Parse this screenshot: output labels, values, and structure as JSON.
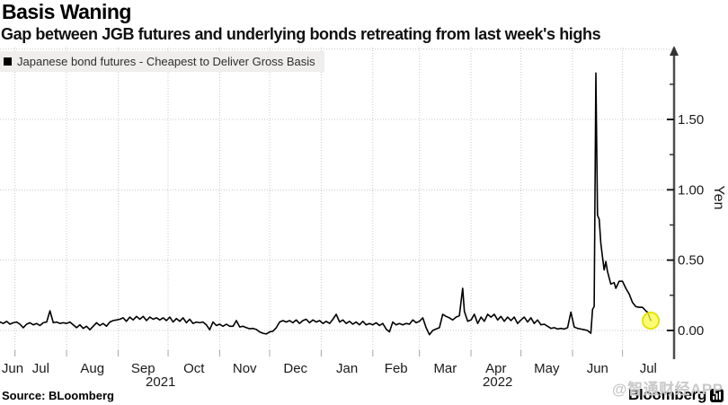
{
  "header": {
    "title": "Basis Waning",
    "subtitle": "Gap between JGB futures and underlying bonds retreating from last week's highs"
  },
  "legend": {
    "label": "Japanese bond futures - Cheapest to Deliver Gross Basis"
  },
  "source": "Source: BLoomberg",
  "watermark": "@智通财经APP",
  "logo": {
    "text": "Bloomberg",
    "icon": "bar-chart-icon"
  },
  "colors": {
    "line": "#000000",
    "marker_fill": "#fbfb45",
    "marker_stroke": "#e3e300",
    "grid": "#c9c9c9",
    "axis": "#4d4d4d",
    "tick_label": "#1a1a1a",
    "legend_bg": "#efeeec"
  },
  "chart_data": {
    "type": "line",
    "title": "Basis Waning",
    "subtitle": "Gap between JGB futures and underlying bonds retreating from last week's highs",
    "ylabel": "Yen",
    "xlabel": "",
    "legend_position": "top-left",
    "grid": true,
    "x_domain": [
      "2021-06-22",
      "2022-08-01"
    ],
    "ylim": [
      -0.2,
      2.0
    ],
    "y_ticks": [
      0.0,
      0.5,
      1.0,
      1.5
    ],
    "y_minor_step": 0.25,
    "x_month_labels": [
      "Jun",
      "Jul",
      "Aug",
      "Sep",
      "Oct",
      "Nov",
      "Dec",
      "Jan",
      "Feb",
      "Mar",
      "Apr",
      "May",
      "Jun",
      "Jul"
    ],
    "year_labels": [
      "2021",
      "2022"
    ],
    "end_marker": {
      "point": [
        "2022-07-18",
        0.07
      ]
    },
    "series": [
      {
        "name": "Japanese bond futures - Cheapest to Deliver Gross Basis",
        "color": "#000000",
        "points": [
          [
            "2021-06-22",
            0.06
          ],
          [
            "2021-06-24",
            0.05
          ],
          [
            "2021-06-26",
            0.065
          ],
          [
            "2021-06-28",
            0.045
          ],
          [
            "2021-06-30",
            0.055
          ],
          [
            "2021-07-02",
            0.06
          ],
          [
            "2021-07-04",
            0.045
          ],
          [
            "2021-07-06",
            0.02
          ],
          [
            "2021-07-08",
            0.045
          ],
          [
            "2021-07-10",
            0.055
          ],
          [
            "2021-07-12",
            0.04
          ],
          [
            "2021-07-14",
            0.05
          ],
          [
            "2021-07-16",
            0.035
          ],
          [
            "2021-07-18",
            0.055
          ],
          [
            "2021-07-20",
            0.06
          ],
          [
            "2021-07-22",
            0.14
          ],
          [
            "2021-07-24",
            0.055
          ],
          [
            "2021-07-26",
            0.06
          ],
          [
            "2021-07-28",
            0.05
          ],
          [
            "2021-07-30",
            0.055
          ],
          [
            "2021-08-01",
            0.05
          ],
          [
            "2021-08-03",
            0.06
          ],
          [
            "2021-08-05",
            0.04
          ],
          [
            "2021-08-07",
            0.02
          ],
          [
            "2021-08-09",
            0.04
          ],
          [
            "2021-08-11",
            0.015
          ],
          [
            "2021-08-13",
            0.03
          ],
          [
            "2021-08-15",
            0.005
          ],
          [
            "2021-08-17",
            0.03
          ],
          [
            "2021-08-19",
            0.055
          ],
          [
            "2021-08-21",
            0.035
          ],
          [
            "2021-08-23",
            0.05
          ],
          [
            "2021-08-25",
            0.03
          ],
          [
            "2021-08-27",
            0.06
          ],
          [
            "2021-08-29",
            0.07
          ],
          [
            "2021-08-31",
            0.075
          ],
          [
            "2021-09-02",
            0.08
          ],
          [
            "2021-09-04",
            0.09
          ],
          [
            "2021-09-06",
            0.065
          ],
          [
            "2021-09-08",
            0.095
          ],
          [
            "2021-09-10",
            0.075
          ],
          [
            "2021-09-12",
            0.1
          ],
          [
            "2021-09-14",
            0.08
          ],
          [
            "2021-09-16",
            0.1
          ],
          [
            "2021-09-18",
            0.07
          ],
          [
            "2021-09-20",
            0.095
          ],
          [
            "2021-09-22",
            0.08
          ],
          [
            "2021-09-24",
            0.09
          ],
          [
            "2021-09-26",
            0.075
          ],
          [
            "2021-09-28",
            0.09
          ],
          [
            "2021-09-30",
            0.07
          ],
          [
            "2021-10-02",
            0.095
          ],
          [
            "2021-10-04",
            0.06
          ],
          [
            "2021-10-06",
            0.085
          ],
          [
            "2021-10-08",
            0.065
          ],
          [
            "2021-10-10",
            0.09
          ],
          [
            "2021-10-12",
            0.055
          ],
          [
            "2021-10-14",
            0.08
          ],
          [
            "2021-10-16",
            0.05
          ],
          [
            "2021-10-18",
            0.06
          ],
          [
            "2021-10-20",
            0.055
          ],
          [
            "2021-10-22",
            0.06
          ],
          [
            "2021-10-24",
            0.04
          ],
          [
            "2021-10-26",
            0.005
          ],
          [
            "2021-10-28",
            0.06
          ],
          [
            "2021-10-30",
            0.035
          ],
          [
            "2021-11-01",
            0.045
          ],
          [
            "2021-11-03",
            0.03
          ],
          [
            "2021-11-05",
            0.045
          ],
          [
            "2021-11-07",
            0.03
          ],
          [
            "2021-11-09",
            0.03
          ],
          [
            "2021-11-11",
            0.07
          ],
          [
            "2021-11-13",
            0.025
          ],
          [
            "2021-11-15",
            0.03
          ],
          [
            "2021-11-17",
            0.02
          ],
          [
            "2021-11-19",
            0.012
          ],
          [
            "2021-11-21",
            0.015
          ],
          [
            "2021-11-23",
            0.007
          ],
          [
            "2021-11-25",
            -0.01
          ],
          [
            "2021-11-27",
            -0.02
          ],
          [
            "2021-11-29",
            -0.025
          ],
          [
            "2021-12-01",
            -0.01
          ],
          [
            "2021-12-03",
            -0.005
          ],
          [
            "2021-12-05",
            0.02
          ],
          [
            "2021-12-07",
            0.06
          ],
          [
            "2021-12-09",
            0.07
          ],
          [
            "2021-12-11",
            0.06
          ],
          [
            "2021-12-13",
            0.07
          ],
          [
            "2021-12-15",
            0.055
          ],
          [
            "2021-12-17",
            0.075
          ],
          [
            "2021-12-19",
            0.05
          ],
          [
            "2021-12-21",
            0.07
          ],
          [
            "2021-12-23",
            0.08
          ],
          [
            "2021-12-25",
            0.055
          ],
          [
            "2021-12-27",
            0.075
          ],
          [
            "2021-12-29",
            0.06
          ],
          [
            "2021-12-31",
            0.07
          ],
          [
            "2022-01-02",
            0.05
          ],
          [
            "2022-01-04",
            0.065
          ],
          [
            "2022-01-06",
            0.05
          ],
          [
            "2022-01-08",
            0.08
          ],
          [
            "2022-01-10",
            0.115
          ],
          [
            "2022-01-12",
            0.06
          ],
          [
            "2022-01-14",
            0.075
          ],
          [
            "2022-01-16",
            0.05
          ],
          [
            "2022-01-18",
            0.065
          ],
          [
            "2022-01-20",
            0.045
          ],
          [
            "2022-01-22",
            0.06
          ],
          [
            "2022-01-24",
            0.04
          ],
          [
            "2022-01-26",
            0.065
          ],
          [
            "2022-01-28",
            0.04
          ],
          [
            "2022-01-30",
            0.05
          ],
          [
            "2022-02-01",
            0.04
          ],
          [
            "2022-02-03",
            0.055
          ],
          [
            "2022-02-05",
            0.035
          ],
          [
            "2022-02-07",
            0.05
          ],
          [
            "2022-02-09",
            0.01
          ],
          [
            "2022-02-11",
            -0.01
          ],
          [
            "2022-02-13",
            0.06
          ],
          [
            "2022-02-15",
            0.04
          ],
          [
            "2022-02-17",
            0.05
          ],
          [
            "2022-02-19",
            0.04
          ],
          [
            "2022-02-21",
            0.05
          ],
          [
            "2022-02-23",
            0.045
          ],
          [
            "2022-02-25",
            0.075
          ],
          [
            "2022-02-27",
            0.055
          ],
          [
            "2022-03-01",
            0.065
          ],
          [
            "2022-03-03",
            0.09
          ],
          [
            "2022-03-05",
            0.02
          ],
          [
            "2022-03-07",
            -0.03
          ],
          [
            "2022-03-09",
            0.0
          ],
          [
            "2022-03-11",
            0.01
          ],
          [
            "2022-03-13",
            0.02
          ],
          [
            "2022-03-15",
            0.115
          ],
          [
            "2022-03-17",
            0.1
          ],
          [
            "2022-03-19",
            0.09
          ],
          [
            "2022-03-21",
            0.075
          ],
          [
            "2022-03-23",
            0.095
          ],
          [
            "2022-03-25",
            0.105
          ],
          [
            "2022-03-27",
            0.3
          ],
          [
            "2022-03-28",
            0.135
          ],
          [
            "2022-03-30",
            0.065
          ],
          [
            "2022-04-01",
            0.075
          ],
          [
            "2022-04-03",
            0.115
          ],
          [
            "2022-04-05",
            0.05
          ],
          [
            "2022-04-07",
            0.095
          ],
          [
            "2022-04-09",
            0.065
          ],
          [
            "2022-04-11",
            0.115
          ],
          [
            "2022-04-13",
            0.095
          ],
          [
            "2022-04-15",
            0.115
          ],
          [
            "2022-04-17",
            0.075
          ],
          [
            "2022-04-19",
            0.1
          ],
          [
            "2022-04-21",
            0.065
          ],
          [
            "2022-04-23",
            0.095
          ],
          [
            "2022-04-25",
            0.07
          ],
          [
            "2022-04-27",
            0.095
          ],
          [
            "2022-04-29",
            0.05
          ],
          [
            "2022-05-01",
            0.075
          ],
          [
            "2022-05-03",
            0.095
          ],
          [
            "2022-05-05",
            0.06
          ],
          [
            "2022-05-07",
            0.09
          ],
          [
            "2022-05-09",
            0.05
          ],
          [
            "2022-05-11",
            0.075
          ],
          [
            "2022-05-13",
            0.04
          ],
          [
            "2022-05-15",
            0.045
          ],
          [
            "2022-05-17",
            0.03
          ],
          [
            "2022-05-19",
            0.015
          ],
          [
            "2022-05-21",
            0.02
          ],
          [
            "2022-05-23",
            0.01
          ],
          [
            "2022-05-25",
            0.015
          ],
          [
            "2022-05-27",
            0.01
          ],
          [
            "2022-05-29",
            0.02
          ],
          [
            "2022-05-31",
            0.13
          ],
          [
            "2022-06-02",
            0.025
          ],
          [
            "2022-06-04",
            0.015
          ],
          [
            "2022-06-06",
            0.01
          ],
          [
            "2022-06-08",
            0.005
          ],
          [
            "2022-06-10",
            0.0
          ],
          [
            "2022-06-12",
            -0.02
          ],
          [
            "2022-06-13",
            0.15
          ],
          [
            "2022-06-14",
            0.17
          ],
          [
            "2022-06-15",
            1.83
          ],
          [
            "2022-06-16",
            0.82
          ],
          [
            "2022-06-17",
            0.79
          ],
          [
            "2022-06-18",
            0.62
          ],
          [
            "2022-06-19",
            0.52
          ],
          [
            "2022-06-20",
            0.43
          ],
          [
            "2022-06-21",
            0.49
          ],
          [
            "2022-06-22",
            0.42
          ],
          [
            "2022-06-24",
            0.33
          ],
          [
            "2022-06-26",
            0.34
          ],
          [
            "2022-06-27",
            0.3
          ],
          [
            "2022-06-29",
            0.35
          ],
          [
            "2022-07-01",
            0.35
          ],
          [
            "2022-07-03",
            0.3
          ],
          [
            "2022-07-05",
            0.26
          ],
          [
            "2022-07-07",
            0.2
          ],
          [
            "2022-07-09",
            0.17
          ],
          [
            "2022-07-11",
            0.165
          ],
          [
            "2022-07-13",
            0.165
          ],
          [
            "2022-07-15",
            0.14
          ],
          [
            "2022-07-16",
            0.13
          ],
          [
            "2022-07-18",
            0.07
          ]
        ]
      }
    ]
  }
}
